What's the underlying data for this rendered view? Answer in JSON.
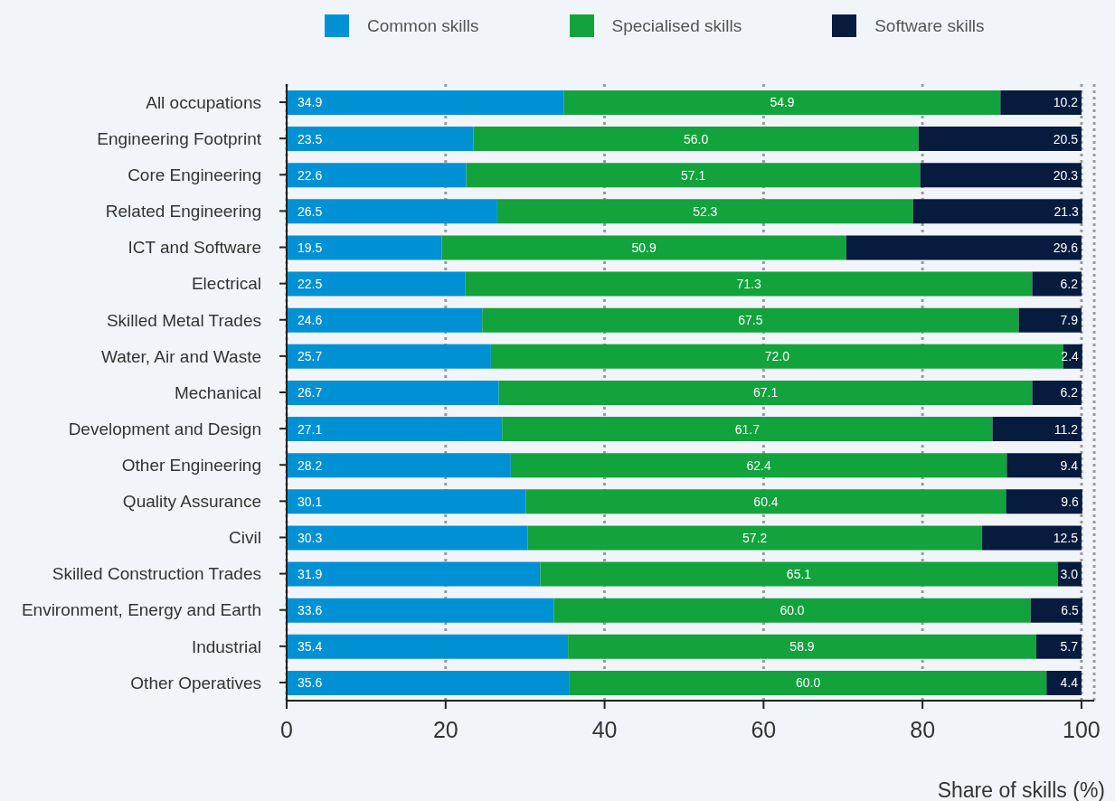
{
  "chart_data": {
    "type": "bar",
    "orientation": "horizontal",
    "stacked": true,
    "categories": [
      "All occupations",
      "Engineering Footprint",
      "Core Engineering",
      "Related Engineering",
      "ICT and Software",
      "Electrical",
      "Skilled Metal Trades",
      "Water, Air and Waste",
      "Mechanical",
      "Development and Design",
      "Other Engineering",
      "Quality Assurance",
      "Civil",
      "Skilled Construction Trades",
      "Environment, Energy and Earth",
      "Industrial",
      "Other Operatives"
    ],
    "series": [
      {
        "name": "Common skills",
        "color": "#0091d5",
        "values": [
          34.9,
          23.5,
          22.6,
          26.5,
          19.5,
          22.5,
          24.6,
          25.7,
          26.7,
          27.1,
          28.2,
          30.1,
          30.3,
          31.9,
          33.6,
          35.4,
          35.6
        ],
        "value_labels": [
          "34.9",
          "23.5",
          "22.6",
          "26.5",
          "19.5",
          "22.5",
          "24.6",
          "25.7",
          "26.7",
          "27.1",
          "28.2",
          "30.1",
          "30.3",
          "31.9",
          "33.6",
          "35.4",
          "35.6"
        ]
      },
      {
        "name": "Specialised skills",
        "color": "#12a33c",
        "values": [
          54.9,
          56.0,
          57.1,
          52.3,
          50.9,
          71.3,
          67.5,
          72.0,
          67.1,
          61.7,
          62.4,
          60.4,
          57.2,
          65.1,
          60.0,
          58.9,
          60.0
        ],
        "value_labels": [
          "54.9",
          "56.0",
          "57.1",
          "52.3",
          "50.9",
          "71.3",
          "67.5",
          "72.0",
          "67.1",
          "61.7",
          "62.4",
          "60.4",
          "57.2",
          "65.1",
          "60.0",
          "58.9",
          "60.0"
        ]
      },
      {
        "name": "Software skills",
        "color": "#061b3e",
        "values": [
          10.2,
          20.5,
          20.3,
          21.3,
          29.6,
          6.2,
          7.9,
          2.4,
          6.2,
          11.2,
          9.4,
          9.6,
          12.5,
          3.0,
          6.5,
          5.7,
          4.4
        ],
        "value_labels": [
          "10.2",
          "20.5",
          "20.3",
          "21.3",
          "29.6",
          "6.2",
          "7.9",
          "2.4",
          "6.2",
          "11.2",
          "9.4",
          "9.6",
          "12.5",
          "3.0",
          "6.5",
          "5.7",
          "4.4"
        ]
      }
    ],
    "xlim": [
      0,
      101.6
    ],
    "xticks": [
      0,
      20,
      40,
      60,
      80,
      100
    ],
    "xlabel": "Share of skills (%)",
    "grid": "x",
    "legend": "top"
  }
}
